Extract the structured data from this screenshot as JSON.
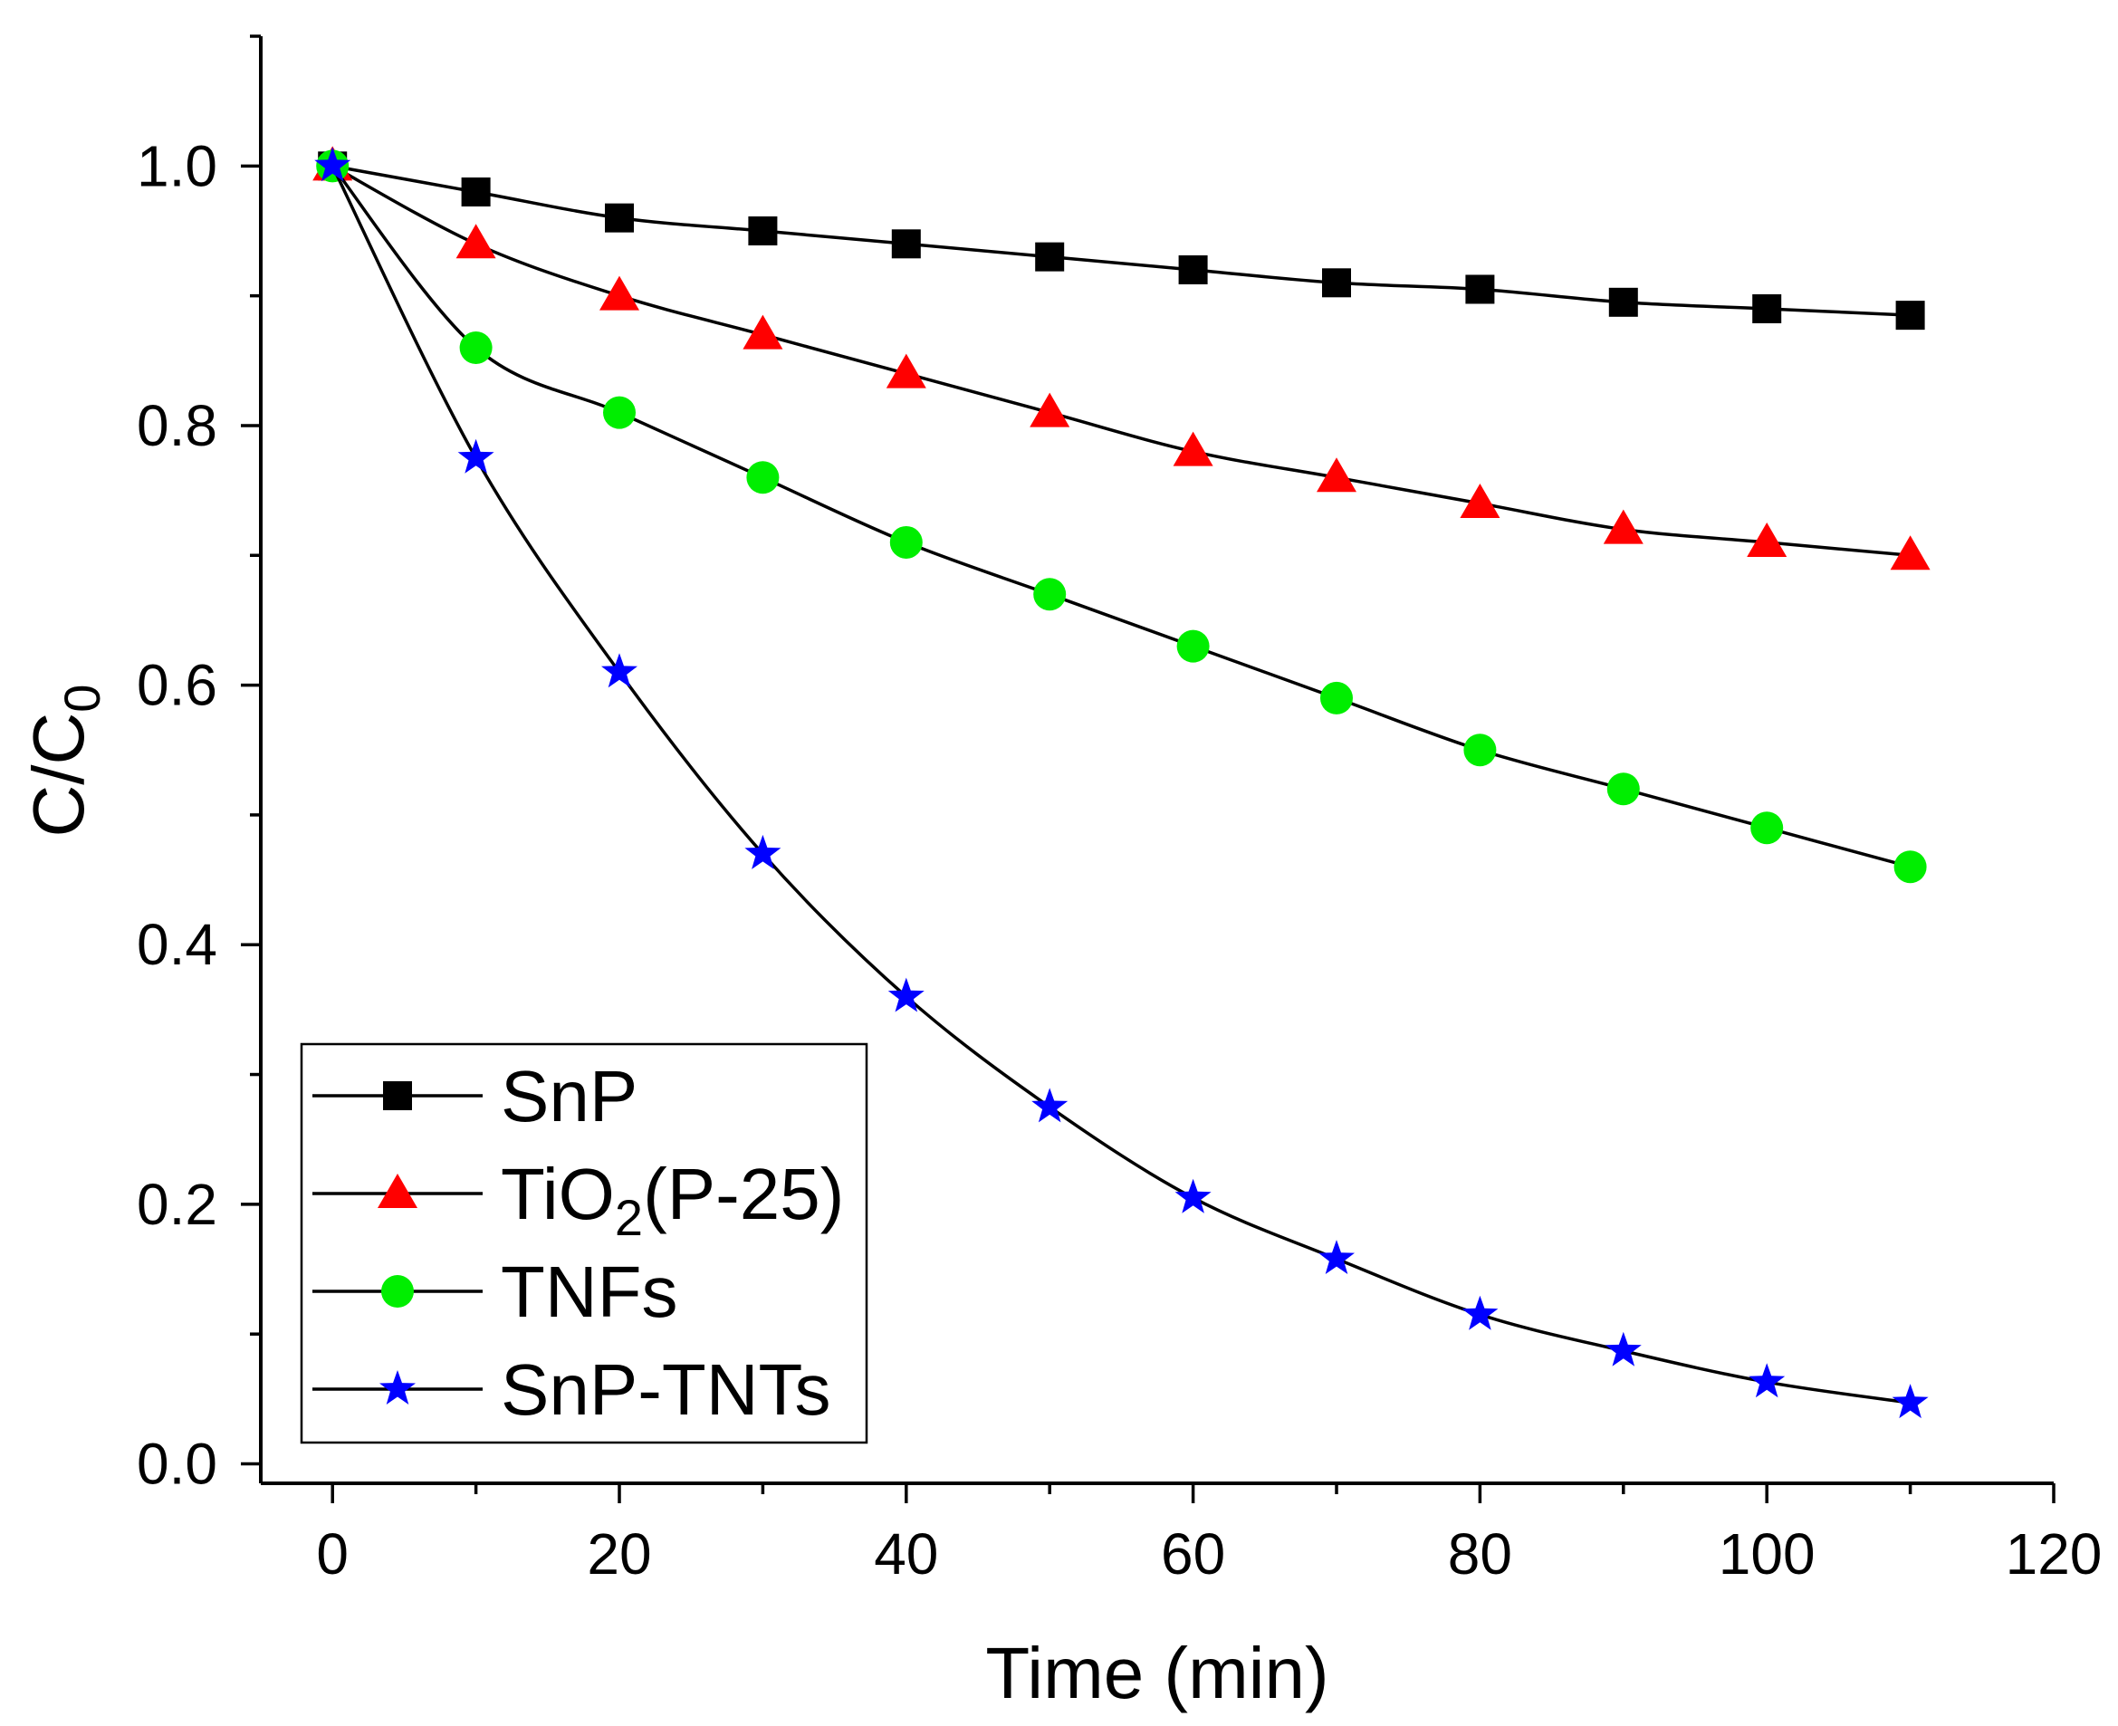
{
  "chart_data": {
    "type": "line",
    "xlabel": "Time (min)",
    "ylabel": {
      "main": "C/C",
      "sub": "0"
    },
    "xlim": [
      -5,
      120
    ],
    "ylim": [
      -0.015,
      1.1
    ],
    "x_ticks": [
      "0",
      "20",
      "40",
      "60",
      "80",
      "100",
      "120"
    ],
    "y_ticks": [
      "0.0",
      "0.2",
      "0.4",
      "0.6",
      "0.8",
      "1.0"
    ],
    "x": [
      0,
      10,
      20,
      30,
      40,
      50,
      60,
      70,
      80,
      90,
      100,
      110
    ],
    "grid": false,
    "legend_position": "bottom-left",
    "series": [
      {
        "key": "snp",
        "label_parts": [
          {
            "text": "SnP"
          }
        ],
        "marker": "square",
        "color": "#000000",
        "values": [
          1.0,
          0.98,
          0.96,
          0.95,
          0.94,
          0.93,
          0.92,
          0.91,
          0.905,
          0.895,
          0.89,
          0.885
        ]
      },
      {
        "key": "tio2",
        "label_parts": [
          {
            "text": "TiO"
          },
          {
            "text": "2",
            "sub": true
          },
          {
            "text": "(P-25)"
          }
        ],
        "marker": "triangle",
        "color": "#ff0000",
        "values": [
          1.0,
          0.94,
          0.9,
          0.87,
          0.84,
          0.81,
          0.78,
          0.76,
          0.74,
          0.72,
          0.71,
          0.7
        ]
      },
      {
        "key": "tnfs",
        "label_parts": [
          {
            "text": "TNFs"
          }
        ],
        "marker": "circle",
        "color": "#00ee00",
        "values": [
          1.0,
          0.86,
          0.81,
          0.76,
          0.71,
          0.67,
          0.63,
          0.59,
          0.55,
          0.52,
          0.49,
          0.46
        ]
      },
      {
        "key": "snp_tnts",
        "label_parts": [
          {
            "text": "SnP-TNTs"
          }
        ],
        "marker": "star",
        "color": "#0000ff",
        "values": [
          1.0,
          0.775,
          0.61,
          0.47,
          0.36,
          0.275,
          0.205,
          0.158,
          0.115,
          0.087,
          0.063,
          0.047
        ]
      }
    ]
  }
}
